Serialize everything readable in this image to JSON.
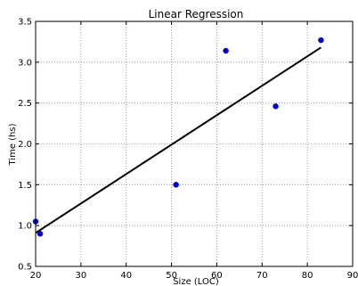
{
  "chart_data": {
    "type": "scatter",
    "title": "Linear Regression",
    "xlabel": "Size (LOC)",
    "ylabel": "Time (hs)",
    "xlim": [
      20,
      90
    ],
    "ylim": [
      0.5,
      3.5
    ],
    "x_ticks": [
      "20",
      "30",
      "40",
      "50",
      "60",
      "70",
      "80",
      "90"
    ],
    "y_ticks": [
      "0.5",
      "1.0",
      "1.5",
      "2.0",
      "2.5",
      "3.0",
      "3.5"
    ],
    "grid": true,
    "grid_style": "dotted",
    "series": [
      {
        "kind": "scatter",
        "color": "#0000cc",
        "points": [
          {
            "x": 20,
            "y": 1.05
          },
          {
            "x": 21,
            "y": 0.9
          },
          {
            "x": 51,
            "y": 1.5
          },
          {
            "x": 62,
            "y": 3.14
          },
          {
            "x": 73,
            "y": 2.46
          },
          {
            "x": 83,
            "y": 3.27
          }
        ]
      },
      {
        "kind": "line",
        "color": "#000000",
        "points": [
          {
            "x": 20,
            "y": 0.91
          },
          {
            "x": 83,
            "y": 3.18
          }
        ]
      }
    ]
  }
}
